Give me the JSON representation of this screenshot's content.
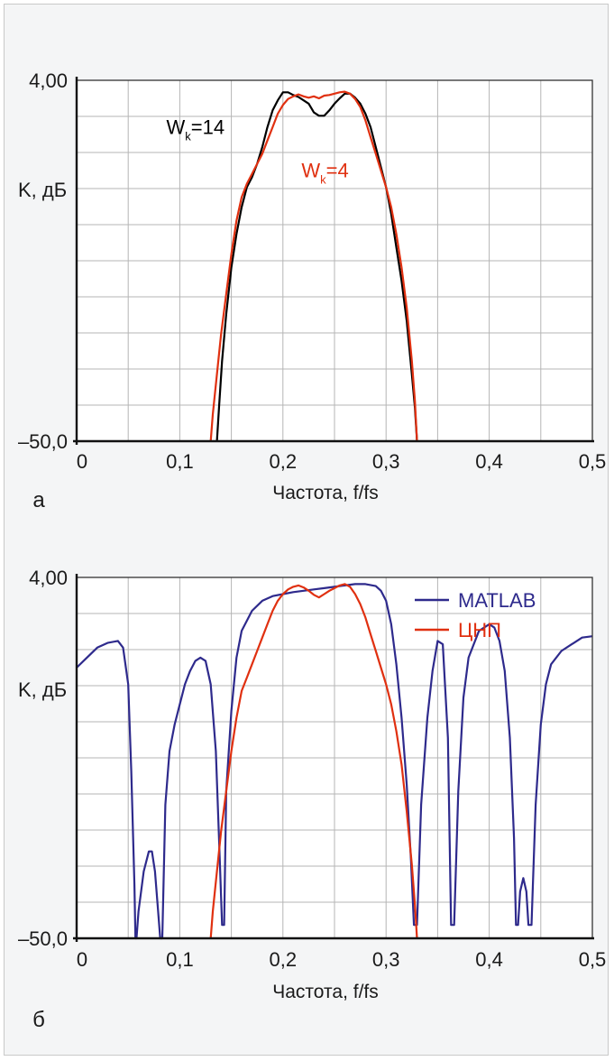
{
  "chart_data": [
    {
      "id": "a",
      "type": "line",
      "panel_label": "а",
      "xlabel": "Частота, f/fs",
      "ylabel": "K, дБ",
      "xlim": [
        0,
        0.5
      ],
      "ylim": [
        -50,
        4
      ],
      "x_ticks": [
        "0",
        "0,1",
        "0,2",
        "0,3",
        "0,4",
        "0,5"
      ],
      "y_tick_labels": [
        {
          "label": "4,00",
          "value": 4
        },
        {
          "label": "–50,0",
          "value": -50
        }
      ],
      "grid": true,
      "series": [
        {
          "name": "Wk=14",
          "name_main": "W",
          "name_sub": "k",
          "name_tail": "=14",
          "color": "#000000",
          "label_at": [
            0.087,
            -4.0
          ],
          "points": [
            [
              0.136,
              -50
            ],
            [
              0.138,
              -45
            ],
            [
              0.141,
              -38
            ],
            [
              0.145,
              -31
            ],
            [
              0.15,
              -24
            ],
            [
              0.155,
              -19
            ],
            [
              0.16,
              -15
            ],
            [
              0.165,
              -12
            ],
            [
              0.17,
              -10.5
            ],
            [
              0.175,
              -8.5
            ],
            [
              0.18,
              -6
            ],
            [
              0.185,
              -3
            ],
            [
              0.19,
              -0.5
            ],
            [
              0.195,
              1
            ],
            [
              0.2,
              2.2
            ],
            [
              0.205,
              2.2
            ],
            [
              0.21,
              1.8
            ],
            [
              0.215,
              1.5
            ],
            [
              0.22,
              1
            ],
            [
              0.225,
              0.5
            ],
            [
              0.23,
              -0.8
            ],
            [
              0.235,
              -1.3
            ],
            [
              0.24,
              -1.3
            ],
            [
              0.245,
              -0.5
            ],
            [
              0.25,
              0.5
            ],
            [
              0.255,
              1.3
            ],
            [
              0.26,
              2
            ],
            [
              0.265,
              2
            ],
            [
              0.27,
              1.4
            ],
            [
              0.275,
              0.5
            ],
            [
              0.28,
              -1
            ],
            [
              0.285,
              -3
            ],
            [
              0.29,
              -6
            ],
            [
              0.295,
              -9
            ],
            [
              0.3,
              -12
            ],
            [
              0.305,
              -16
            ],
            [
              0.31,
              -21
            ],
            [
              0.315,
              -26
            ],
            [
              0.32,
              -32
            ],
            [
              0.325,
              -40
            ],
            [
              0.328,
              -45
            ],
            [
              0.33,
              -50
            ]
          ]
        },
        {
          "name": "Wk=4",
          "name_main": "W",
          "name_sub": "k",
          "name_tail": "=4",
          "color": "#e03010",
          "label_at": [
            0.218,
            -10.5
          ],
          "points": [
            [
              0.13,
              -50
            ],
            [
              0.132,
              -46
            ],
            [
              0.136,
              -40
            ],
            [
              0.14,
              -34
            ],
            [
              0.145,
              -28
            ],
            [
              0.15,
              -22
            ],
            [
              0.155,
              -17
            ],
            [
              0.16,
              -13.5
            ],
            [
              0.165,
              -11.5
            ],
            [
              0.17,
              -10
            ],
            [
              0.175,
              -8.5
            ],
            [
              0.18,
              -7
            ],
            [
              0.185,
              -5
            ],
            [
              0.19,
              -3
            ],
            [
              0.195,
              -1
            ],
            [
              0.2,
              0.3
            ],
            [
              0.205,
              1.2
            ],
            [
              0.21,
              1.6
            ],
            [
              0.215,
              1.9
            ],
            [
              0.22,
              1.6
            ],
            [
              0.225,
              1.4
            ],
            [
              0.23,
              1.6
            ],
            [
              0.235,
              1.3
            ],
            [
              0.24,
              1.7
            ],
            [
              0.245,
              1.8
            ],
            [
              0.25,
              2
            ],
            [
              0.255,
              2.2
            ],
            [
              0.26,
              2.3
            ],
            [
              0.265,
              2
            ],
            [
              0.27,
              1.2
            ],
            [
              0.275,
              0
            ],
            [
              0.28,
              -2
            ],
            [
              0.285,
              -4.5
            ],
            [
              0.29,
              -7
            ],
            [
              0.295,
              -9.5
            ],
            [
              0.3,
              -12
            ],
            [
              0.305,
              -15
            ],
            [
              0.31,
              -19
            ],
            [
              0.315,
              -24
            ],
            [
              0.32,
              -30
            ],
            [
              0.325,
              -38
            ],
            [
              0.328,
              -44
            ],
            [
              0.33,
              -50
            ]
          ]
        }
      ]
    },
    {
      "id": "b",
      "type": "line",
      "panel_label": "б",
      "xlabel": "Частота, f/fs",
      "ylabel": "K, дБ",
      "xlim": [
        0,
        0.5
      ],
      "ylim": [
        -50,
        4
      ],
      "x_ticks": [
        "0",
        "0,1",
        "0,2",
        "0,3",
        "0,4",
        "0,5"
      ],
      "y_tick_labels": [
        {
          "label": "4,00",
          "value": 4
        },
        {
          "label": "–50,0",
          "value": -50
        }
      ],
      "grid": true,
      "legend": "top-right",
      "series": [
        {
          "name": "MATLAB",
          "color": "#2e2a8c",
          "points": [
            [
              0,
              -9.5
            ],
            [
              0.01,
              -8
            ],
            [
              0.02,
              -6.5
            ],
            [
              0.03,
              -5.8
            ],
            [
              0.04,
              -5.5
            ],
            [
              0.045,
              -6.5
            ],
            [
              0.05,
              -12
            ],
            [
              0.053,
              -25
            ],
            [
              0.056,
              -42
            ],
            [
              0.057,
              -50
            ],
            [
              0.058,
              -50
            ],
            [
              0.06,
              -46
            ],
            [
              0.065,
              -40
            ],
            [
              0.07,
              -37
            ],
            [
              0.073,
              -37
            ],
            [
              0.076,
              -40
            ],
            [
              0.079,
              -46
            ],
            [
              0.081,
              -50
            ],
            [
              0.083,
              -50
            ],
            [
              0.086,
              -30
            ],
            [
              0.09,
              -22
            ],
            [
              0.095,
              -18
            ],
            [
              0.1,
              -15
            ],
            [
              0.105,
              -12
            ],
            [
              0.11,
              -10
            ],
            [
              0.115,
              -8.5
            ],
            [
              0.12,
              -8
            ],
            [
              0.125,
              -8.5
            ],
            [
              0.13,
              -12
            ],
            [
              0.135,
              -22
            ],
            [
              0.138,
              -35
            ],
            [
              0.141,
              -48
            ],
            [
              0.143,
              -48
            ],
            [
              0.145,
              -28
            ],
            [
              0.15,
              -16
            ],
            [
              0.155,
              -8
            ],
            [
              0.16,
              -4
            ],
            [
              0.17,
              -1
            ],
            [
              0.18,
              0.5
            ],
            [
              0.19,
              1.2
            ],
            [
              0.2,
              1.5
            ],
            [
              0.21,
              1.8
            ],
            [
              0.22,
              2
            ],
            [
              0.23,
              2.2
            ],
            [
              0.24,
              2.4
            ],
            [
              0.25,
              2.6
            ],
            [
              0.26,
              2.8
            ],
            [
              0.27,
              3
            ],
            [
              0.28,
              3
            ],
            [
              0.29,
              2.7
            ],
            [
              0.295,
              2
            ],
            [
              0.3,
              0.5
            ],
            [
              0.305,
              -3
            ],
            [
              0.31,
              -9
            ],
            [
              0.315,
              -17
            ],
            [
              0.32,
              -27
            ],
            [
              0.324,
              -38
            ],
            [
              0.327,
              -48
            ],
            [
              0.33,
              -48
            ],
            [
              0.334,
              -30
            ],
            [
              0.34,
              -17
            ],
            [
              0.345,
              -10
            ],
            [
              0.35,
              -5.5
            ],
            [
              0.355,
              -6
            ],
            [
              0.36,
              -20
            ],
            [
              0.363,
              -48
            ],
            [
              0.366,
              -48
            ],
            [
              0.37,
              -28
            ],
            [
              0.375,
              -14
            ],
            [
              0.38,
              -8
            ],
            [
              0.39,
              -4
            ],
            [
              0.4,
              -3
            ],
            [
              0.405,
              -3.5
            ],
            [
              0.41,
              -5.5
            ],
            [
              0.415,
              -10
            ],
            [
              0.42,
              -20
            ],
            [
              0.424,
              -35
            ],
            [
              0.426,
              -48
            ],
            [
              0.428,
              -48
            ],
            [
              0.43,
              -43
            ],
            [
              0.433,
              -41
            ],
            [
              0.436,
              -43
            ],
            [
              0.438,
              -48
            ],
            [
              0.441,
              -48
            ],
            [
              0.445,
              -30
            ],
            [
              0.45,
              -18
            ],
            [
              0.455,
              -12
            ],
            [
              0.46,
              -9
            ],
            [
              0.47,
              -7
            ],
            [
              0.48,
              -6
            ],
            [
              0.49,
              -5
            ],
            [
              0.5,
              -4.8
            ]
          ]
        },
        {
          "name": "ЦНП",
          "color": "#e03010",
          "points": [
            [
              0.13,
              -50
            ],
            [
              0.132,
              -46
            ],
            [
              0.136,
              -40
            ],
            [
              0.14,
              -34
            ],
            [
              0.145,
              -28
            ],
            [
              0.15,
              -22
            ],
            [
              0.155,
              -17
            ],
            [
              0.16,
              -13
            ],
            [
              0.165,
              -11
            ],
            [
              0.17,
              -9
            ],
            [
              0.175,
              -7
            ],
            [
              0.18,
              -5
            ],
            [
              0.185,
              -3
            ],
            [
              0.19,
              -1
            ],
            [
              0.195,
              0.5
            ],
            [
              0.2,
              1.5
            ],
            [
              0.205,
              2.2
            ],
            [
              0.21,
              2.6
            ],
            [
              0.215,
              2.8
            ],
            [
              0.22,
              2.5
            ],
            [
              0.225,
              2
            ],
            [
              0.23,
              1.4
            ],
            [
              0.235,
              1
            ],
            [
              0.24,
              1.5
            ],
            [
              0.245,
              2
            ],
            [
              0.25,
              2.4
            ],
            [
              0.255,
              2.8
            ],
            [
              0.26,
              3
            ],
            [
              0.265,
              2.6
            ],
            [
              0.27,
              1.5
            ],
            [
              0.275,
              0
            ],
            [
              0.28,
              -2
            ],
            [
              0.285,
              -4.5
            ],
            [
              0.29,
              -7
            ],
            [
              0.295,
              -9.5
            ],
            [
              0.3,
              -12
            ],
            [
              0.305,
              -15
            ],
            [
              0.31,
              -19
            ],
            [
              0.315,
              -24
            ],
            [
              0.32,
              -31
            ],
            [
              0.325,
              -39
            ],
            [
              0.328,
              -45
            ],
            [
              0.33,
              -50
            ]
          ]
        }
      ]
    }
  ]
}
